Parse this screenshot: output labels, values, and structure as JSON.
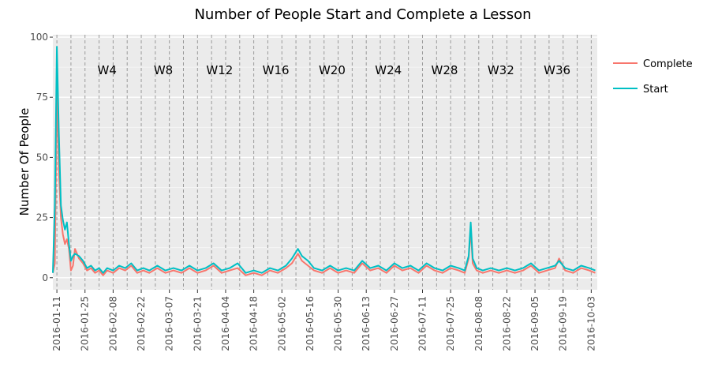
{
  "chart_data": {
    "type": "line",
    "title": "Number of People Start and Complete a Lesson",
    "xlabel": "",
    "ylabel": "Number Of People",
    "x_range": [
      "2016-01-09",
      "2016-10-06"
    ],
    "ylim": [
      -5,
      101
    ],
    "y_ticks": [
      0,
      25,
      50,
      75,
      100
    ],
    "x_ticks": [
      "2016-01-11",
      "2016-01-25",
      "2016-02-08",
      "2016-02-22",
      "2016-03-07",
      "2016-03-21",
      "2016-04-04",
      "2016-04-18",
      "2016-05-02",
      "2016-05-16",
      "2016-05-30",
      "2016-06-13",
      "2016-06-27",
      "2016-07-11",
      "2016-07-25",
      "2016-08-08",
      "2016-08-22",
      "2016-09-05",
      "2016-09-19",
      "2016-10-03"
    ],
    "grid": true,
    "legend_position": "right",
    "week_lines": {
      "start": "2016-01-11",
      "step_days": 7,
      "count": 39,
      "style": "dashed"
    },
    "week_labels": [
      {
        "label": "W4",
        "x": "2016-02-05"
      },
      {
        "label": "W8",
        "x": "2016-03-04"
      },
      {
        "label": "W12",
        "x": "2016-04-01"
      },
      {
        "label": "W16",
        "x": "2016-04-29"
      },
      {
        "label": "W20",
        "x": "2016-05-27"
      },
      {
        "label": "W24",
        "x": "2016-06-24"
      },
      {
        "label": "W28",
        "x": "2016-07-22"
      },
      {
        "label": "W32",
        "x": "2016-08-19"
      },
      {
        "label": "W36",
        "x": "2016-09-16"
      }
    ],
    "series": [
      {
        "name": "Complete",
        "color": "#f8766d",
        "x": [
          "2016-01-09",
          "2016-01-10",
          "2016-01-11",
          "2016-01-12",
          "2016-01-13",
          "2016-01-14",
          "2016-01-15",
          "2016-01-16",
          "2016-01-17",
          "2016-01-18",
          "2016-01-19",
          "2016-01-20",
          "2016-01-22",
          "2016-01-24",
          "2016-01-26",
          "2016-01-28",
          "2016-01-30",
          "2016-02-01",
          "2016-02-03",
          "2016-02-05",
          "2016-02-08",
          "2016-02-11",
          "2016-02-14",
          "2016-02-17",
          "2016-02-20",
          "2016-02-23",
          "2016-02-26",
          "2016-03-01",
          "2016-03-05",
          "2016-03-09",
          "2016-03-13",
          "2016-03-17",
          "2016-03-21",
          "2016-03-25",
          "2016-03-29",
          "2016-04-02",
          "2016-04-06",
          "2016-04-10",
          "2016-04-14",
          "2016-04-18",
          "2016-04-22",
          "2016-04-26",
          "2016-04-30",
          "2016-05-04",
          "2016-05-07",
          "2016-05-10",
          "2016-05-12",
          "2016-05-15",
          "2016-05-18",
          "2016-05-22",
          "2016-05-26",
          "2016-05-30",
          "2016-06-03",
          "2016-06-07",
          "2016-06-11",
          "2016-06-15",
          "2016-06-19",
          "2016-06-23",
          "2016-06-27",
          "2016-07-01",
          "2016-07-05",
          "2016-07-09",
          "2016-07-13",
          "2016-07-17",
          "2016-07-21",
          "2016-07-25",
          "2016-07-29",
          "2016-08-01",
          "2016-08-03",
          "2016-08-04",
          "2016-08-05",
          "2016-08-07",
          "2016-08-10",
          "2016-08-14",
          "2016-08-18",
          "2016-08-22",
          "2016-08-26",
          "2016-08-30",
          "2016-09-03",
          "2016-09-07",
          "2016-09-11",
          "2016-09-15",
          "2016-09-17",
          "2016-09-20",
          "2016-09-24",
          "2016-09-28",
          "2016-10-02",
          "2016-10-05"
        ],
        "y": [
          2,
          6,
          80,
          45,
          25,
          18,
          14,
          16,
          12,
          3,
          5,
          12,
          8,
          6,
          3,
          4,
          2,
          3,
          1,
          3,
          2,
          4,
          3,
          5,
          2,
          3,
          2,
          4,
          2,
          3,
          2,
          4,
          2,
          3,
          5,
          2,
          3,
          4,
          1,
          2,
          1,
          3,
          2,
          4,
          6,
          10,
          7,
          5,
          3,
          2,
          4,
          2,
          3,
          2,
          6,
          3,
          4,
          2,
          5,
          3,
          4,
          2,
          5,
          3,
          2,
          4,
          3,
          2,
          8,
          20,
          6,
          3,
          2,
          3,
          2,
          3,
          2,
          3,
          5,
          2,
          3,
          4,
          8,
          3,
          2,
          4,
          3,
          2
        ]
      },
      {
        "name": "Start",
        "color": "#00bfc4",
        "x": [
          "2016-01-09",
          "2016-01-10",
          "2016-01-11",
          "2016-01-12",
          "2016-01-13",
          "2016-01-14",
          "2016-01-15",
          "2016-01-16",
          "2016-01-17",
          "2016-01-18",
          "2016-01-19",
          "2016-01-20",
          "2016-01-22",
          "2016-01-24",
          "2016-01-26",
          "2016-01-28",
          "2016-01-30",
          "2016-02-01",
          "2016-02-03",
          "2016-02-05",
          "2016-02-08",
          "2016-02-11",
          "2016-02-14",
          "2016-02-17",
          "2016-02-20",
          "2016-02-23",
          "2016-02-26",
          "2016-03-01",
          "2016-03-05",
          "2016-03-09",
          "2016-03-13",
          "2016-03-17",
          "2016-03-21",
          "2016-03-25",
          "2016-03-29",
          "2016-04-02",
          "2016-04-06",
          "2016-04-10",
          "2016-04-14",
          "2016-04-18",
          "2016-04-22",
          "2016-04-26",
          "2016-04-30",
          "2016-05-04",
          "2016-05-07",
          "2016-05-10",
          "2016-05-12",
          "2016-05-15",
          "2016-05-18",
          "2016-05-22",
          "2016-05-26",
          "2016-05-30",
          "2016-06-03",
          "2016-06-07",
          "2016-06-11",
          "2016-06-15",
          "2016-06-19",
          "2016-06-23",
          "2016-06-27",
          "2016-07-01",
          "2016-07-05",
          "2016-07-09",
          "2016-07-13",
          "2016-07-17",
          "2016-07-21",
          "2016-07-25",
          "2016-07-29",
          "2016-08-01",
          "2016-08-03",
          "2016-08-04",
          "2016-08-05",
          "2016-08-07",
          "2016-08-10",
          "2016-08-14",
          "2016-08-18",
          "2016-08-22",
          "2016-08-26",
          "2016-08-30",
          "2016-09-03",
          "2016-09-07",
          "2016-09-11",
          "2016-09-15",
          "2016-09-17",
          "2016-09-20",
          "2016-09-24",
          "2016-09-28",
          "2016-10-02",
          "2016-10-05"
        ],
        "y": [
          2,
          30,
          96,
          60,
          30,
          24,
          20,
          23,
          14,
          7,
          9,
          10,
          9,
          7,
          4,
          5,
          3,
          4,
          2,
          4,
          3,
          5,
          4,
          6,
          3,
          4,
          3,
          5,
          3,
          4,
          3,
          5,
          3,
          4,
          6,
          3,
          4,
          6,
          2,
          3,
          2,
          4,
          3,
          5,
          8,
          12,
          9,
          7,
          4,
          3,
          5,
          3,
          4,
          3,
          7,
          4,
          5,
          3,
          6,
          4,
          5,
          3,
          6,
          4,
          3,
          5,
          4,
          3,
          9,
          23,
          8,
          4,
          3,
          4,
          3,
          4,
          3,
          4,
          6,
          3,
          4,
          5,
          7,
          4,
          3,
          5,
          4,
          3
        ]
      }
    ]
  }
}
